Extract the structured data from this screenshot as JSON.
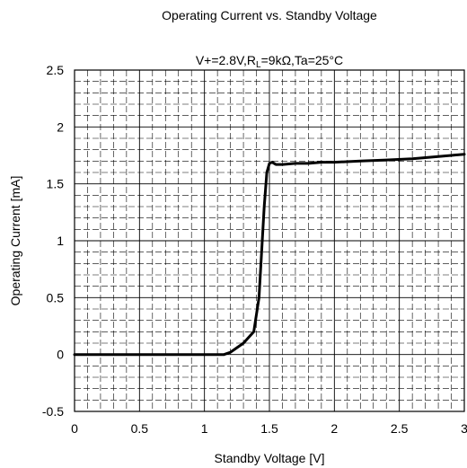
{
  "chart_data": {
    "type": "line",
    "title": "Operating Current vs. Standby Voltage",
    "subtitle_parts": {
      "prefix": "V+=2.8V,R",
      "subscript": "L",
      "suffix": "=9kΩ,Ta=25°C"
    },
    "xlabel": "Standby Voltage [V]",
    "ylabel": "Operating Current [mA]",
    "xlim": [
      0,
      3
    ],
    "ylim": [
      -0.5,
      2.5
    ],
    "x_ticks": [
      0,
      0.5,
      1,
      1.5,
      2,
      2.5,
      3
    ],
    "x_tick_labels": [
      "0",
      "0.5",
      "1",
      "1.5",
      "2",
      "2.5",
      "3"
    ],
    "y_ticks": [
      -0.5,
      0,
      0.5,
      1,
      1.5,
      2,
      2.5
    ],
    "y_tick_labels": [
      "-0.5",
      "0",
      "0.5",
      "1",
      "1.5",
      "2",
      "2.5"
    ],
    "grid": true,
    "legend": "none",
    "series": [
      {
        "color": "#000000",
        "x": [
          0,
          0.5,
          1.0,
          1.15,
          1.2,
          1.3,
          1.38,
          1.42,
          1.44,
          1.46,
          1.48,
          1.5,
          1.52,
          1.55,
          1.6,
          1.7,
          1.8,
          1.9,
          2.0,
          2.2,
          2.4,
          2.6,
          2.8,
          2.9,
          3.0
        ],
        "y": [
          0,
          0,
          0,
          0,
          0.02,
          0.1,
          0.2,
          0.5,
          0.9,
          1.3,
          1.6,
          1.68,
          1.69,
          1.67,
          1.67,
          1.68,
          1.68,
          1.69,
          1.69,
          1.7,
          1.71,
          1.72,
          1.74,
          1.75,
          1.76
        ]
      }
    ]
  }
}
